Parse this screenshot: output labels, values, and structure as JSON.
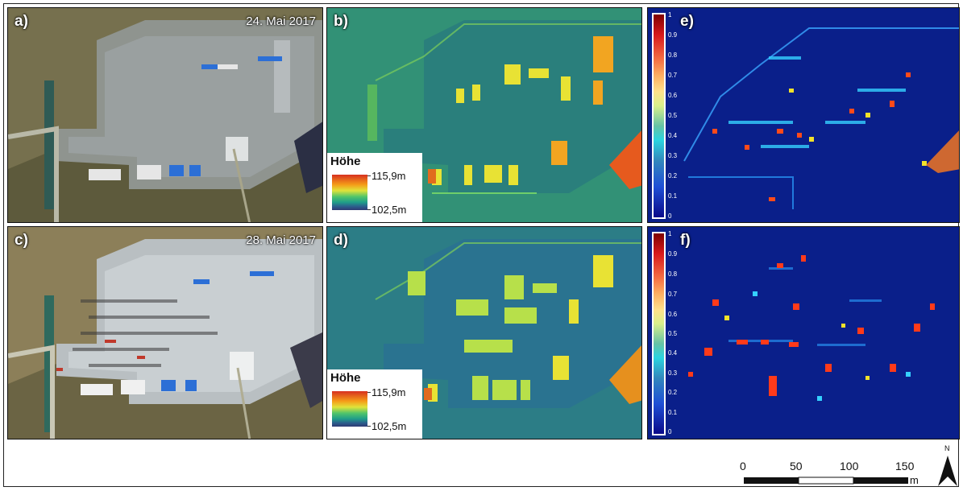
{
  "panels": {
    "a": {
      "label": "a)",
      "date": "24. Mai 2017"
    },
    "b": {
      "label": "b)"
    },
    "c": {
      "label": "c)",
      "date": "28. Mai 2017"
    },
    "d": {
      "label": "d)"
    },
    "e": {
      "label": "e)"
    },
    "f": {
      "label": "f)"
    }
  },
  "height_legend": {
    "title": "Höhe",
    "max": "115,9m",
    "min": "102,5m"
  },
  "probability_colorbar": {
    "ticks": [
      "1",
      "0.9",
      "0.8",
      "0.7",
      "0.6",
      "0.5",
      "0.4",
      "0.3",
      "0.2",
      "0.1",
      "0"
    ]
  },
  "scale_bar": {
    "labels": [
      "0",
      "50",
      "100",
      "150"
    ],
    "unit": "m"
  },
  "north_arrow": {
    "label": "N",
    "icon": "north-arrow-icon"
  },
  "colors": {
    "water_background": "#0a1f8a",
    "dem_background": "#2a8a78",
    "frame": "#111111"
  }
}
